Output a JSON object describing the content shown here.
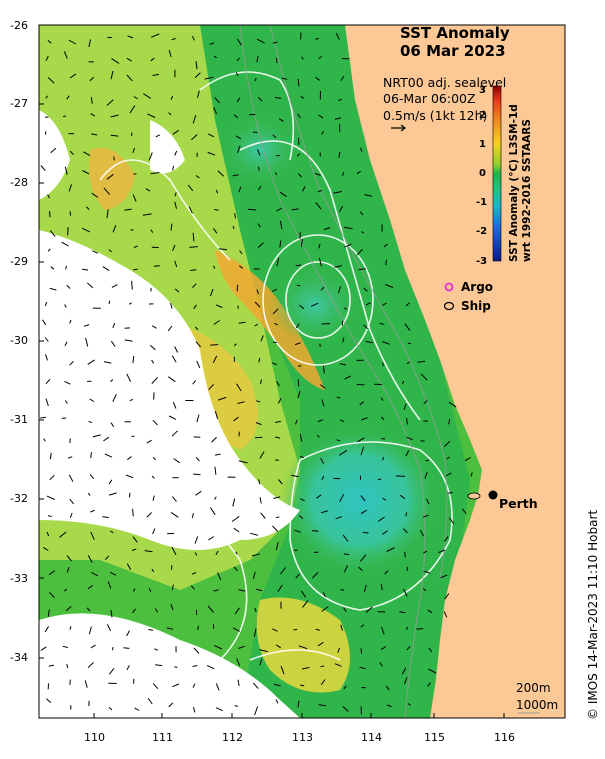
{
  "title": {
    "line1": "SST Anomaly",
    "line2": "06 Mar 2023"
  },
  "info": {
    "line1": "NRT00 adj. sealevel",
    "line2": "06-Mar 06:00Z",
    "line3": "0.5m/s (1kt 12h)"
  },
  "legend": {
    "argo": "Argo",
    "ship": "Ship"
  },
  "colorbar": {
    "label_line1": "SST Anomaly (°C) L3SM-1d",
    "label_line2": "wrt 1992-2016 SSTAARS",
    "ticks": [
      "3",
      "2",
      "1",
      "0",
      "-1",
      "-2",
      "-3"
    ],
    "colors": [
      "#8b0000",
      "#e8381a",
      "#f5a21c",
      "#d9e21e",
      "#22b24c",
      "#1fb7b0",
      "#1c6fd9",
      "#0a1a8c"
    ]
  },
  "map": {
    "city": "Perth",
    "depth_200": "200m",
    "depth_1000": "1000m",
    "y_ticks": [
      "-26",
      "-27",
      "-28",
      "-29",
      "-30",
      "-31",
      "-32",
      "-33",
      "-34"
    ],
    "x_ticks": [
      "110",
      "111",
      "112",
      "113",
      "114",
      "115",
      "116"
    ],
    "land_color": "#fbc896",
    "ocean_green": "#2bb53a"
  },
  "credit": "© IMOS 14-Mar-2023 11:10 Hobart"
}
